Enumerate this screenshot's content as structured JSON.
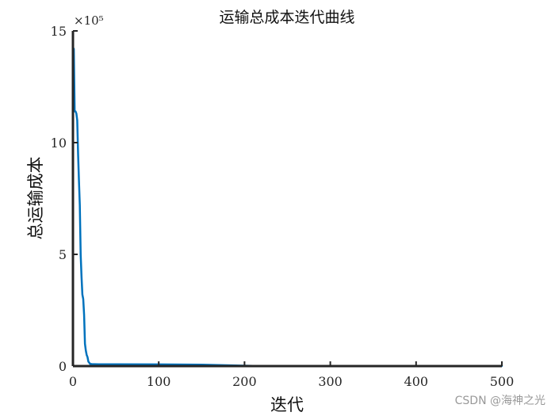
{
  "chart_data": {
    "type": "line",
    "title": "运输总成本迭代曲线",
    "xlabel": "迭代",
    "ylabel": "总运输成本",
    "y_exponent_label": "×10⁵",
    "xlim": [
      0,
      500
    ],
    "ylim": [
      0,
      15
    ],
    "xticks": [
      0,
      100,
      200,
      300,
      400,
      500
    ],
    "yticks": [
      0,
      5,
      10,
      15
    ],
    "grid": false,
    "series": [
      {
        "color": "#0072BD",
        "x": [
          1,
          2,
          3,
          4,
          5,
          6,
          7,
          8,
          9,
          10,
          11,
          12,
          13,
          14,
          15,
          16,
          17,
          18,
          19,
          20,
          22,
          25,
          30,
          50,
          100,
          150,
          200,
          210,
          300,
          400,
          500
        ],
        "y": [
          14.2,
          11.4,
          11.4,
          11.3,
          11.0,
          9.5,
          8.3,
          7.2,
          5.0,
          4.0,
          3.2,
          3.0,
          2.3,
          1.0,
          0.7,
          0.5,
          0.4,
          0.2,
          0.15,
          0.1,
          0.09,
          0.085,
          0.08,
          0.08,
          0.075,
          0.06,
          0.02,
          0.01,
          0.01,
          0.01,
          0.01
        ]
      }
    ]
  },
  "watermark": "CSDN @海神之光"
}
